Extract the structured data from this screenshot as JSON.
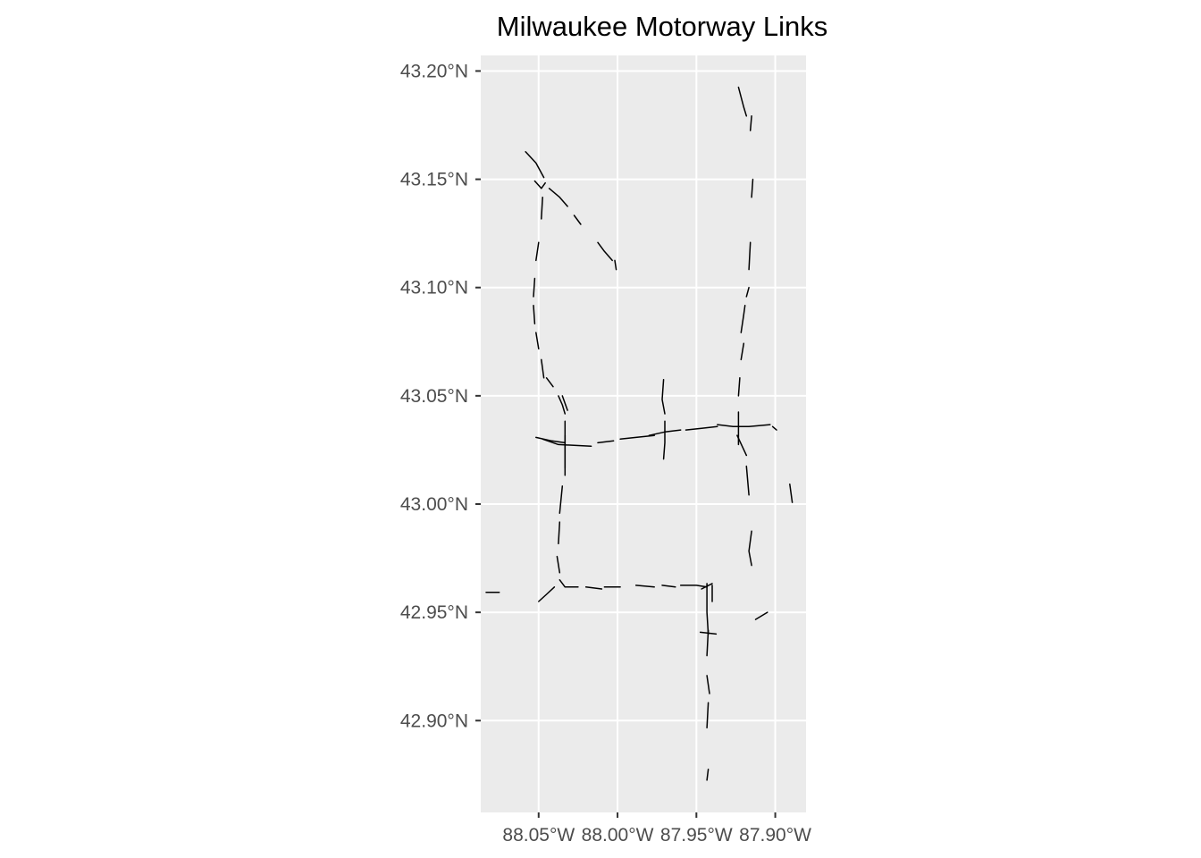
{
  "title": "Milwaukee Motorway Links",
  "axes": {
    "x_ticks": [
      {
        "value": -88.05,
        "label": "88.05°W"
      },
      {
        "value": -88.0,
        "label": "88.00°W"
      },
      {
        "value": -87.95,
        "label": "87.95°W"
      },
      {
        "value": -87.9,
        "label": "87.90°W"
      }
    ],
    "y_ticks": [
      {
        "value": 43.2,
        "label": "43.20°N"
      },
      {
        "value": 43.15,
        "label": "43.15°N"
      },
      {
        "value": 43.1,
        "label": "43.10°N"
      },
      {
        "value": 43.05,
        "label": "43.05°N"
      },
      {
        "value": 43.0,
        "label": "43.00°N"
      },
      {
        "value": 42.95,
        "label": "42.95°N"
      },
      {
        "value": 42.9,
        "label": "42.90°N"
      }
    ],
    "x_range": [
      -88.0867,
      -87.8805
    ],
    "y_range": [
      42.8576,
      43.2072
    ]
  },
  "colors": {
    "panel_background": "#ebebeb",
    "grid": "#ffffff",
    "links": "#000000",
    "tick_text": "#4d4d4d"
  },
  "links": [
    [
      [
        -88.0583,
        43.1627
      ],
      [
        -88.0517,
        43.1575
      ],
      [
        -88.0467,
        43.1508
      ]
    ],
    [
      [
        -88.0525,
        43.1492
      ],
      [
        -88.0483,
        43.1458
      ],
      [
        -88.0458,
        43.1483
      ]
    ],
    [
      [
        -88.0433,
        43.1458
      ],
      [
        -88.0367,
        43.1417
      ],
      [
        -88.0317,
        43.1375
      ]
    ],
    [
      [
        -88.0275,
        43.1333
      ],
      [
        -88.0233,
        43.1292
      ]
    ],
    [
      [
        -88.0125,
        43.1208
      ],
      [
        -88.0083,
        43.1167
      ],
      [
        -88.0033,
        43.1125
      ]
    ],
    [
      [
        -88.0017,
        43.1125
      ],
      [
        -88.0008,
        43.1083
      ]
    ],
    [
      [
        -88.0475,
        43.1417
      ],
      [
        -88.0483,
        43.1317
      ]
    ],
    [
      [
        -88.05,
        43.1208
      ],
      [
        -88.0517,
        43.1125
      ]
    ],
    [
      [
        -88.0525,
        43.1042
      ],
      [
        -88.0533,
        43.0958
      ]
    ],
    [
      [
        -88.0533,
        43.0917
      ],
      [
        -88.0525,
        43.0833
      ]
    ],
    [
      [
        -88.0517,
        43.0792
      ],
      [
        -88.05,
        43.0717
      ]
    ],
    [
      [
        -88.0483,
        43.0667
      ],
      [
        -88.0467,
        43.0583
      ]
    ],
    [
      [
        -88.045,
        43.0583
      ],
      [
        -88.0408,
        43.0542
      ]
    ],
    [
      [
        -88.0375,
        43.05
      ],
      [
        -88.035,
        43.0458
      ],
      [
        -88.0333,
        43.0417
      ]
    ],
    [
      [
        -88.035,
        43.05
      ],
      [
        -88.0317,
        43.0433
      ]
    ],
    [
      [
        -88.0333,
        43.0383
      ],
      [
        -88.0333,
        43.0167
      ]
    ],
    [
      [
        -88.0517,
        43.0308
      ],
      [
        -88.0417,
        43.0292
      ],
      [
        -88.0333,
        43.0283
      ]
    ],
    [
      [
        -88.0475,
        43.03
      ],
      [
        -88.0375,
        43.0275
      ],
      [
        -88.0167,
        43.0267
      ]
    ],
    [
      [
        -88.0333,
        43.0317
      ],
      [
        -88.0333,
        43.0133
      ]
    ],
    [
      [
        -88.0125,
        43.0283
      ],
      [
        -88.0025,
        43.0292
      ]
    ],
    [
      [
        -87.9983,
        43.03
      ],
      [
        -87.9883,
        43.0308
      ],
      [
        -87.9767,
        43.0317
      ]
    ],
    [
      [
        -87.98,
        43.0317
      ],
      [
        -87.97,
        43.0333
      ],
      [
        -87.96,
        43.0342
      ]
    ],
    [
      [
        -87.9708,
        43.0575
      ],
      [
        -87.9717,
        43.0483
      ],
      [
        -87.97,
        43.0417
      ]
    ],
    [
      [
        -87.97,
        43.0383
      ],
      [
        -87.97,
        43.0283
      ],
      [
        -87.9708,
        43.0208
      ]
    ],
    [
      [
        -87.9567,
        43.0342
      ],
      [
        -87.9467,
        43.035
      ],
      [
        -87.9367,
        43.0358
      ]
    ],
    [
      [
        -87.9367,
        43.0367
      ],
      [
        -87.9267,
        43.0358
      ],
      [
        -87.9167,
        43.0358
      ],
      [
        -87.9033,
        43.0367
      ]
    ],
    [
      [
        -87.9017,
        43.0358
      ],
      [
        -87.8992,
        43.0342
      ]
    ],
    [
      [
        -87.9233,
        43.0425
      ],
      [
        -87.9233,
        43.0275
      ]
    ],
    [
      [
        -87.9242,
        43.0317
      ],
      [
        -87.9183,
        43.0225
      ]
    ],
    [
      [
        -87.9183,
        43.0175
      ],
      [
        -87.9167,
        43.0042
      ]
    ],
    [
      [
        -87.8908,
        43.0092
      ],
      [
        -87.8892,
        43.0008
      ]
    ],
    [
      [
        -87.915,
        42.9875
      ],
      [
        -87.9167,
        42.9783
      ],
      [
        -87.915,
        42.9717
      ]
    ],
    [
      [
        -87.9233,
        43.05
      ],
      [
        -87.9225,
        43.0583
      ]
    ],
    [
      [
        -87.9217,
        43.0667
      ],
      [
        -87.92,
        43.0742
      ]
    ],
    [
      [
        -87.9217,
        43.0792
      ],
      [
        -87.92,
        43.0875
      ],
      [
        -87.9192,
        43.0917
      ]
    ],
    [
      [
        -87.9183,
        43.0958
      ],
      [
        -87.9167,
        43.1
      ]
    ],
    [
      [
        -87.9167,
        43.1083
      ],
      [
        -87.9158,
        43.1208
      ]
    ],
    [
      [
        -87.915,
        43.1417
      ],
      [
        -87.9142,
        43.15
      ]
    ],
    [
      [
        -87.9158,
        43.1725
      ],
      [
        -87.915,
        43.1792
      ]
    ],
    [
      [
        -87.9233,
        43.1925
      ],
      [
        -87.92,
        43.1833
      ],
      [
        -87.9183,
        43.1792
      ]
    ],
    [
      [
        -88.0367,
        42.9683
      ],
      [
        -88.0383,
        42.9758
      ]
    ],
    [
      [
        -88.0375,
        42.9817
      ],
      [
        -88.0367,
        42.9917
      ]
    ],
    [
      [
        -88.0367,
        42.9958
      ],
      [
        -88.035,
        43.0083
      ]
    ],
    [
      [
        -88.0367,
        42.965
      ],
      [
        -88.0333,
        42.9617
      ],
      [
        -88.025,
        42.9617
      ]
    ],
    [
      [
        -88.02,
        42.9617
      ],
      [
        -88.01,
        42.9608
      ]
    ],
    [
      [
        -88.0083,
        42.9617
      ],
      [
        -87.9983,
        42.9617
      ]
    ],
    [
      [
        -87.9883,
        42.9625
      ],
      [
        -87.9767,
        42.9617
      ]
    ],
    [
      [
        -87.9717,
        42.9625
      ],
      [
        -87.9633,
        42.9617
      ]
    ],
    [
      [
        -87.96,
        42.9625
      ],
      [
        -87.95,
        42.9625
      ],
      [
        -87.9433,
        42.9617
      ]
    ],
    [
      [
        -87.9467,
        42.9608
      ],
      [
        -87.94,
        42.9633
      ]
    ],
    [
      [
        -87.9433,
        42.9633
      ],
      [
        -87.9433,
        42.95
      ],
      [
        -87.9425,
        42.94
      ]
    ],
    [
      [
        -87.94,
        42.9625
      ],
      [
        -87.94,
        42.955
      ]
    ],
    [
      [
        -87.9425,
        42.9417
      ],
      [
        -87.9433,
        42.93
      ]
    ],
    [
      [
        -87.9433,
        42.9208
      ],
      [
        -87.9417,
        42.9125
      ]
    ],
    [
      [
        -87.9425,
        42.9083
      ],
      [
        -87.9433,
        42.8967
      ]
    ],
    [
      [
        -87.9425,
        42.8775
      ],
      [
        -87.9433,
        42.8725
      ]
    ],
    [
      [
        -87.9475,
        42.9408
      ],
      [
        -87.9375,
        42.94
      ]
    ],
    [
      [
        -88.0833,
        42.9592
      ],
      [
        -88.075,
        42.9592
      ]
    ],
    [
      [
        -88.05,
        42.955
      ],
      [
        -88.045,
        42.9583
      ],
      [
        -88.04,
        42.9617
      ]
    ],
    [
      [
        -87.9125,
        42.9467
      ],
      [
        -87.905,
        42.95
      ]
    ]
  ]
}
